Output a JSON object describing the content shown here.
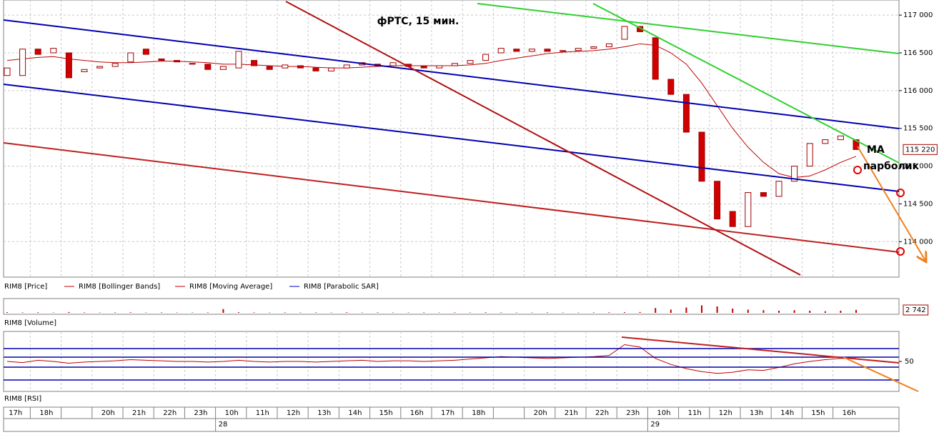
{
  "chart_data": [
    {
      "type": "candlestick",
      "title": "фРТС, 15 мин.",
      "name": "RIM8 [Price]",
      "up_color": "#ffffff",
      "down_color": "#d00000",
      "edge_color": "#a00000",
      "open": [
        116200,
        116200,
        116550,
        116500,
        116500,
        116250,
        116300,
        116320,
        116380,
        116550,
        116420,
        116400,
        116360,
        116350,
        116280,
        116300,
        116400,
        116320,
        116300,
        116330,
        116300,
        116260,
        116300,
        116340,
        116350,
        116330,
        116350,
        116320,
        116300,
        116330,
        116360,
        116400,
        116500,
        116550,
        116520,
        116550,
        116520,
        116530,
        116560,
        116580,
        116680,
        116850,
        116700,
        116150,
        115950,
        115450,
        114800,
        114400,
        114200,
        114650,
        114600,
        114800,
        115000,
        115300,
        115350,
        115350
      ],
      "close": [
        116300,
        116550,
        116480,
        116560,
        116170,
        116280,
        116320,
        116360,
        116500,
        116480,
        116400,
        116380,
        116350,
        116280,
        116320,
        116520,
        116330,
        116280,
        116340,
        116300,
        116260,
        116300,
        116340,
        116370,
        116330,
        116370,
        116320,
        116300,
        116330,
        116360,
        116400,
        116480,
        116560,
        116520,
        116550,
        116520,
        116530,
        116560,
        116580,
        116620,
        116850,
        116780,
        116150,
        115950,
        115450,
        114800,
        114300,
        114200,
        114650,
        114600,
        114800,
        115000,
        115300,
        115350,
        115400,
        115220
      ],
      "value_labels": [
        null,
        null,
        null,
        null,
        null,
        null,
        null,
        null,
        null,
        null,
        null,
        null,
        null,
        null,
        null,
        null,
        null,
        null,
        null,
        null,
        null,
        null,
        null,
        null,
        null,
        null,
        null,
        null,
        null,
        null,
        null,
        null,
        null,
        null,
        null,
        null,
        null,
        null,
        null,
        null,
        null,
        null,
        null,
        null,
        null,
        null,
        null,
        null,
        null,
        null,
        null,
        null,
        null,
        null,
        null,
        "115 220"
      ],
      "ylim": [
        113530,
        117200
      ],
      "yticks": [
        {
          "value": 114000,
          "label": "114 000"
        },
        {
          "value": 114500,
          "label": "114 500"
        },
        {
          "value": 115000,
          "label": "115 000"
        },
        {
          "value": 115500,
          "label": "115 500"
        },
        {
          "value": 116000,
          "label": "116 000"
        },
        {
          "value": 116500,
          "label": "116 500"
        },
        {
          "value": 117000,
          "label": "117 000"
        }
      ],
      "grid": true,
      "overlays": [
        {
          "name": "RIM8 [Bollinger Bands]",
          "color": "#c00000"
        },
        {
          "name": "RIM8 [Moving Average]",
          "color": "#c00000",
          "values": [
            116400,
            116420,
            116440,
            116450,
            116420,
            116400,
            116380,
            116370,
            116370,
            116380,
            116390,
            116390,
            116380,
            116370,
            116350,
            116350,
            116340,
            116330,
            116320,
            116320,
            116310,
            116300,
            116300,
            116310,
            116320,
            116330,
            116330,
            116330,
            116330,
            116330,
            116340,
            116360,
            116400,
            116430,
            116460,
            116490,
            116510,
            116520,
            116530,
            116550,
            116580,
            116620,
            116600,
            116500,
            116350,
            116100,
            115800,
            115500,
            115250,
            115050,
            114900,
            114850,
            114870,
            114950,
            115050,
            115130
          ]
        },
        {
          "name": "RIM8 [Parabolic SAR]",
          "color": "#0000c0"
        }
      ],
      "annotations": [
        "MA",
        "парболик"
      ]
    },
    {
      "type": "bar",
      "name": "RIM8 [Volume]",
      "color": "#c00000",
      "values": [
        600,
        400,
        500,
        300,
        800,
        400,
        300,
        400,
        500,
        300,
        400,
        300,
        300,
        400,
        3500,
        600,
        400,
        300,
        400,
        300,
        400,
        300,
        500,
        300,
        400,
        300,
        300,
        400,
        300,
        400,
        300,
        500,
        400,
        300,
        300,
        400,
        300,
        300,
        400,
        500,
        600,
        800,
        4500,
        3000,
        5000,
        7000,
        6000,
        4000,
        3000,
        2500,
        2000,
        2500,
        2000,
        1500,
        2000,
        2742
      ],
      "value_labels": [
        null,
        null,
        null,
        null,
        null,
        null,
        null,
        null,
        null,
        null,
        null,
        null,
        null,
        null,
        null,
        null,
        null,
        null,
        null,
        null,
        null,
        null,
        null,
        null,
        null,
        null,
        null,
        null,
        null,
        null,
        null,
        null,
        null,
        null,
        null,
        null,
        null,
        null,
        null,
        null,
        null,
        null,
        null,
        null,
        null,
        null,
        null,
        null,
        null,
        null,
        null,
        null,
        null,
        null,
        null,
        "2 742"
      ],
      "ylim": [
        0,
        12000
      ]
    },
    {
      "type": "line",
      "name": "RIM8 [RSI]",
      "color": "#c00000",
      "values": [
        50,
        48,
        52,
        50,
        47,
        49,
        50,
        51,
        53,
        52,
        51,
        50,
        50,
        49,
        50,
        52,
        50,
        49,
        50,
        50,
        49,
        50,
        51,
        52,
        50,
        51,
        51,
        50,
        51,
        52,
        54,
        56,
        58,
        57,
        56,
        55,
        56,
        57,
        58,
        60,
        78,
        74,
        55,
        45,
        38,
        33,
        30,
        32,
        36,
        35,
        40,
        46,
        50,
        53,
        55,
        55
      ],
      "ylim": [
        0,
        100
      ],
      "yticks": [
        50
      ]
    }
  ],
  "time_axis": {
    "categories": [
      "17h",
      "18h",
      null,
      "20h",
      "21h",
      "22h",
      "23h",
      "10h",
      "11h",
      "12h",
      "13h",
      "14h",
      "15h",
      "16h",
      "17h",
      "18h",
      null,
      "20h",
      "21h",
      "22h",
      "23h",
      "10h",
      "11h",
      "12h",
      "13h",
      "14h",
      "15h",
      "16h"
    ],
    "day_labels": [
      null,
      null,
      null,
      null,
      null,
      null,
      null,
      "28",
      null,
      null,
      null,
      null,
      null,
      null,
      null,
      null,
      null,
      null,
      null,
      null,
      null,
      "29",
      null,
      null,
      null,
      null,
      null,
      null
    ]
  }
}
